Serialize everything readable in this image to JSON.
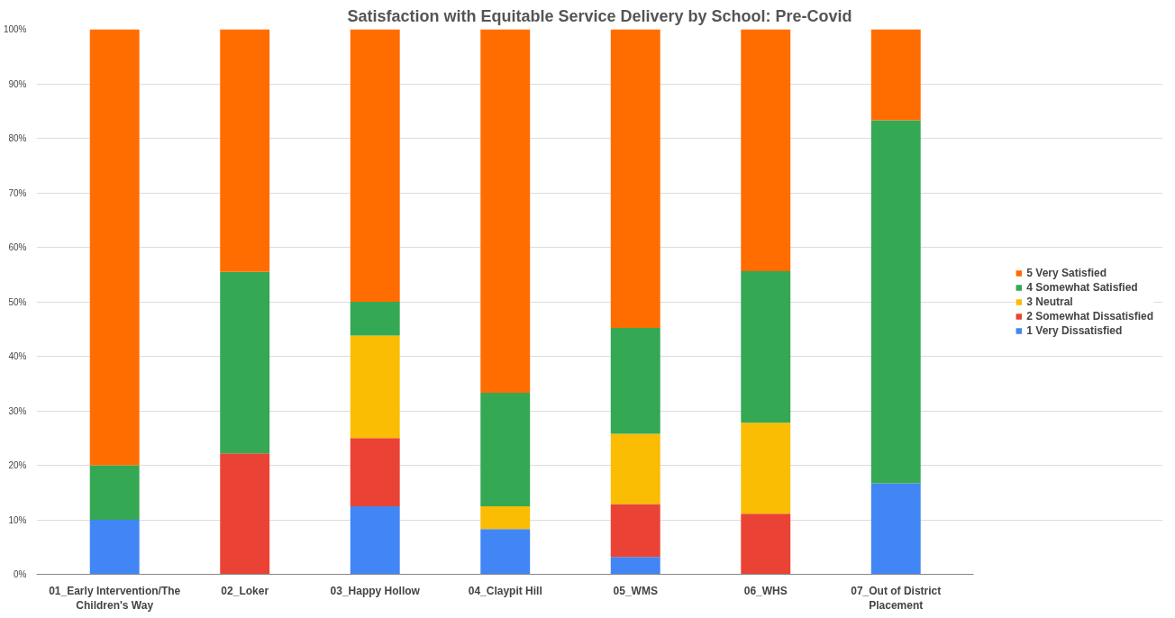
{
  "chart_data": {
    "type": "bar",
    "title": "Satisfaction with Equitable Service Delivery by School: Pre-Covid",
    "categories": [
      "01_Early Intervention/The Children's Way",
      "02_Loker",
      "03_Happy Hollow",
      "04_Claypit Hill",
      "05_WMS",
      "06_WHS",
      "07_Out of District Placement"
    ],
    "stacked": true,
    "series": [
      {
        "name": "1 Very Dissatisfied",
        "color": "#4285f4",
        "values": [
          10,
          0,
          12.5,
          8.3,
          3.2,
          0,
          16.7
        ]
      },
      {
        "name": "2 Somewhat Dissatisfied",
        "color": "#ea4335",
        "values": [
          0,
          22.2,
          12.5,
          0,
          9.7,
          11.1,
          0
        ]
      },
      {
        "name": "3 Neutral",
        "color": "#fbbc04",
        "values": [
          0,
          0,
          18.8,
          4.2,
          12.9,
          16.7,
          0
        ]
      },
      {
        "name": "4 Somewhat Satisfied",
        "color": "#34a853",
        "values": [
          10,
          33.3,
          6.2,
          20.8,
          19.4,
          27.8,
          66.6
        ]
      },
      {
        "name": "5 Very Satisfied",
        "color": "#ff6d01",
        "values": [
          80,
          44.5,
          50,
          66.7,
          54.8,
          44.4,
          16.7
        ]
      }
    ],
    "ylim": [
      0,
      100
    ],
    "yticks": [
      {
        "value": 0,
        "label": "0%"
      },
      {
        "value": 10,
        "label": "10%"
      },
      {
        "value": 20,
        "label": "20%"
      },
      {
        "value": 30,
        "label": "30%"
      },
      {
        "value": 40,
        "label": "40%"
      },
      {
        "value": 50,
        "label": "50%"
      },
      {
        "value": 60,
        "label": "60%"
      },
      {
        "value": 70,
        "label": "70%"
      },
      {
        "value": 80,
        "label": "80%"
      },
      {
        "value": 90,
        "label": "90%"
      },
      {
        "value": 100,
        "label": "100%"
      }
    ],
    "grid": "y",
    "legend": "right"
  }
}
